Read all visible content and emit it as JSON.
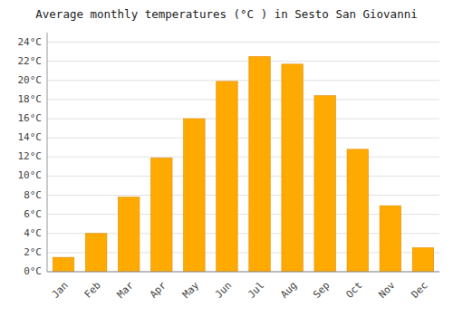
{
  "chart_data": {
    "type": "bar",
    "title": "Average monthly temperatures (°C ) in Sesto San Giovanni",
    "categories": [
      "Jan",
      "Feb",
      "Mar",
      "Apr",
      "May",
      "Jun",
      "Jul",
      "Aug",
      "Sep",
      "Oct",
      "Nov",
      "Dec"
    ],
    "values": [
      1.5,
      4.0,
      7.8,
      11.9,
      16.0,
      19.9,
      22.5,
      21.7,
      18.4,
      12.8,
      6.9,
      2.5
    ],
    "color": "#FFAA00",
    "ylim": [
      0,
      25
    ],
    "yticks": [
      {
        "value": 0,
        "label": "0°C"
      },
      {
        "value": 2,
        "label": "2°C"
      },
      {
        "value": 4,
        "label": "4°C"
      },
      {
        "value": 6,
        "label": "6°C"
      },
      {
        "value": 8,
        "label": "8°C"
      },
      {
        "value": 10,
        "label": "10°C"
      },
      {
        "value": 12,
        "label": "12°C"
      },
      {
        "value": 14,
        "label": "14°C"
      },
      {
        "value": 16,
        "label": "16°C"
      },
      {
        "value": 18,
        "label": "18°C"
      },
      {
        "value": 20,
        "label": "20°C"
      },
      {
        "value": 22,
        "label": "22°C"
      },
      {
        "value": 24,
        "label": "24°C"
      }
    ],
    "grid": true
  }
}
